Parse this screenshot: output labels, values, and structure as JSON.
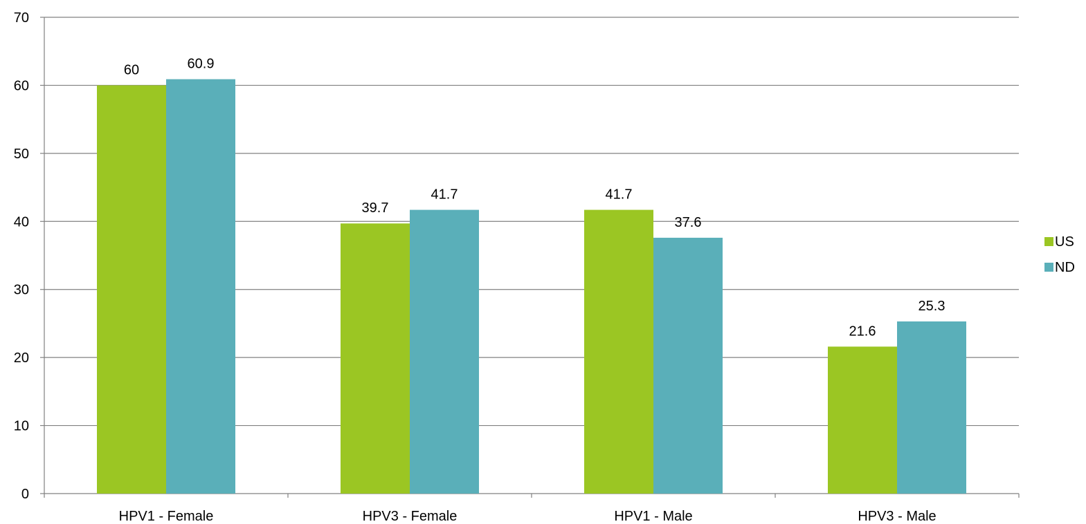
{
  "chart_data": {
    "type": "bar",
    "categories": [
      "HPV1 - Female",
      "HPV3 - Female",
      "HPV1 - Male",
      "HPV3 - Male"
    ],
    "series": [
      {
        "name": "US",
        "values": [
          60,
          39.7,
          41.7,
          21.6
        ],
        "color": "#9bc623"
      },
      {
        "name": "ND",
        "values": [
          60.9,
          41.7,
          37.6,
          25.3
        ],
        "color": "#5aafb9"
      }
    ],
    "ylim": [
      0,
      70
    ],
    "yticks": [
      0,
      10,
      20,
      30,
      40,
      50,
      60,
      70
    ],
    "grid": true,
    "legend_position": "right",
    "gridline_color": "#808080"
  }
}
